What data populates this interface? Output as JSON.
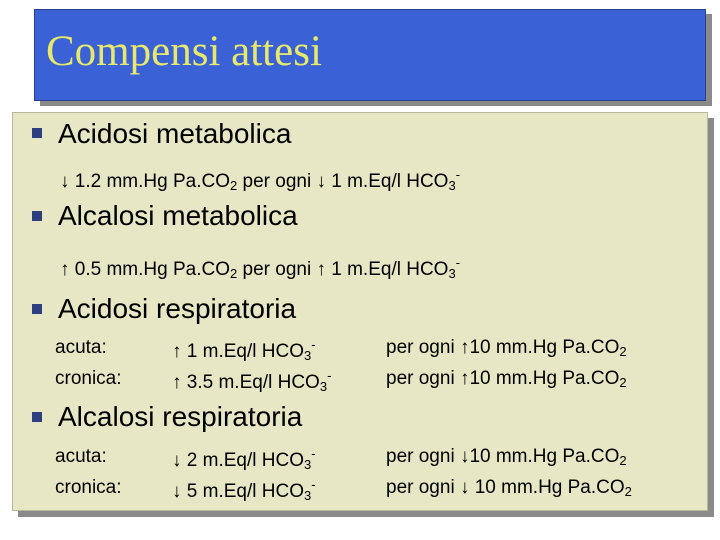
{
  "title": "Compensi attesi",
  "sections": [
    {
      "heading": "Acidosi metabolica",
      "rule": {
        "arrow": "↓",
        "text1": " 1.2 mm.Hg Pa.CO",
        "sub1": "2",
        "text2": " per ogni ",
        "arrow2": "↓",
        "text3": " 1 m.Eq/l HCO",
        "sub2": "3",
        "sup": "-"
      }
    },
    {
      "heading": "Alcalosi metabolica",
      "rule": {
        "arrow": "↑",
        "text1": " 0.5 mm.Hg Pa.CO",
        "sub1": "2",
        "text2": " per ogni ",
        "arrow2": "↑",
        "text3": " 1 m.Eq/l HCO",
        "sub2": "3",
        "sup": "-"
      }
    },
    {
      "heading": "Acidosi respiratoria",
      "rows": [
        {
          "label": "acuta:",
          "change": "↑ 1 m.Eq/l HCO",
          "sub": "3",
          "sup": "-",
          "per": "per ogni ↑10 mm.Hg Pa.CO",
          "per_sub": "2"
        },
        {
          "label": "cronica:",
          "change": "↑ 3.5 m.Eq/l HCO",
          "sub": "3",
          "sup": "-",
          "per": "per ogni ↑10 mm.Hg Pa.CO",
          "per_sub": "2"
        }
      ]
    },
    {
      "heading": "Alcalosi respiratoria",
      "rows": [
        {
          "label": "acuta:",
          "change": "↓ 2 m.Eq/l HCO",
          "sub": "3",
          "sup": "-",
          "per": "per ogni ↓10 mm.Hg Pa.CO",
          "per_sub": "2"
        },
        {
          "label": "cronica:",
          "change": "↓ 5 m.Eq/l HCO",
          "sub": "3",
          "sup": "-",
          "per": "per ogni ↓ 10 mm.Hg Pa.CO",
          "per_sub": "2"
        }
      ]
    }
  ],
  "colors": {
    "title_bg": "#3a62d6",
    "title_text": "#e8e96a",
    "body_bg": "#e7e7c6",
    "bullet": "#2d3f7e"
  }
}
